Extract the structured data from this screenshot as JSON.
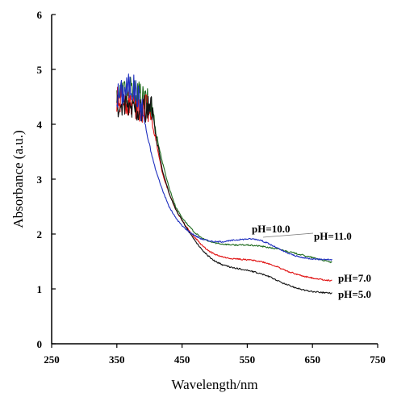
{
  "chart_data": {
    "type": "line",
    "title": "",
    "xlabel": "Wavelength/nm",
    "ylabel": "Absorbance (a.u.)",
    "xlim": [
      250,
      750
    ],
    "ylim": [
      0,
      6
    ],
    "xticks": [
      250,
      350,
      450,
      550,
      650,
      750
    ],
    "yticks": [
      0,
      1,
      2,
      3,
      4,
      5,
      6
    ],
    "grid": false,
    "legend": "none",
    "series": [
      {
        "name": "pH=10.0",
        "color": "#1f2fbf",
        "noise_until": 390,
        "x": [
          350,
          360,
          370,
          380,
          390,
          400,
          410,
          420,
          430,
          440,
          450,
          460,
          470,
          480,
          490,
          500,
          510,
          520,
          530,
          540,
          550,
          560,
          570,
          580,
          590,
          600,
          610,
          620,
          630,
          640,
          650,
          660,
          670,
          680
        ],
        "y": [
          4.5,
          4.6,
          4.7,
          4.6,
          4.2,
          3.6,
          3.15,
          2.8,
          2.5,
          2.3,
          2.15,
          2.05,
          1.97,
          1.91,
          1.88,
          1.86,
          1.86,
          1.87,
          1.89,
          1.9,
          1.91,
          1.91,
          1.89,
          1.84,
          1.78,
          1.72,
          1.66,
          1.62,
          1.58,
          1.56,
          1.55,
          1.54,
          1.54,
          1.53
        ]
      },
      {
        "name": "pH=11.0",
        "color": "#1e6b1e",
        "noise_until": 405,
        "x": [
          350,
          360,
          370,
          380,
          390,
          400,
          405,
          410,
          420,
          430,
          440,
          450,
          460,
          470,
          480,
          490,
          500,
          510,
          520,
          530,
          540,
          550,
          560,
          570,
          580,
          590,
          600,
          610,
          620,
          630,
          640,
          650,
          660,
          670,
          680
        ],
        "y": [
          4.5,
          4.6,
          4.6,
          4.55,
          4.45,
          4.35,
          4.3,
          3.85,
          3.3,
          2.85,
          2.5,
          2.3,
          2.15,
          2.02,
          1.93,
          1.87,
          1.84,
          1.82,
          1.81,
          1.8,
          1.8,
          1.8,
          1.79,
          1.78,
          1.76,
          1.74,
          1.72,
          1.69,
          1.66,
          1.63,
          1.6,
          1.57,
          1.54,
          1.51,
          1.48
        ]
      },
      {
        "name": "pH=7.0",
        "color": "#e01010",
        "noise_until": 400,
        "x": [
          350,
          360,
          370,
          380,
          390,
          400,
          410,
          420,
          430,
          440,
          450,
          460,
          470,
          480,
          490,
          500,
          510,
          520,
          530,
          540,
          550,
          560,
          570,
          580,
          590,
          600,
          610,
          620,
          630,
          640,
          650,
          660,
          670,
          680
        ],
        "y": [
          4.4,
          4.45,
          4.4,
          4.35,
          4.3,
          4.25,
          3.7,
          3.1,
          2.75,
          2.45,
          2.25,
          2.08,
          1.93,
          1.8,
          1.7,
          1.63,
          1.59,
          1.56,
          1.55,
          1.54,
          1.53,
          1.52,
          1.5,
          1.47,
          1.43,
          1.38,
          1.33,
          1.29,
          1.25,
          1.22,
          1.2,
          1.18,
          1.16,
          1.15
        ]
      },
      {
        "name": "pH=5.0",
        "color": "#111111",
        "noise_until": 405,
        "x": [
          350,
          360,
          370,
          380,
          390,
          400,
          405,
          410,
          420,
          430,
          440,
          450,
          460,
          470,
          480,
          490,
          500,
          510,
          520,
          530,
          540,
          550,
          560,
          570,
          580,
          590,
          600,
          610,
          620,
          630,
          640,
          650,
          660,
          670,
          680
        ],
        "y": [
          4.3,
          4.3,
          4.3,
          4.3,
          4.3,
          4.25,
          4.25,
          3.75,
          3.15,
          2.75,
          2.45,
          2.25,
          2.05,
          1.88,
          1.72,
          1.6,
          1.51,
          1.45,
          1.41,
          1.38,
          1.36,
          1.34,
          1.31,
          1.28,
          1.24,
          1.19,
          1.13,
          1.08,
          1.04,
          1.0,
          0.97,
          0.95,
          0.94,
          0.93,
          0.92
        ]
      }
    ]
  }
}
